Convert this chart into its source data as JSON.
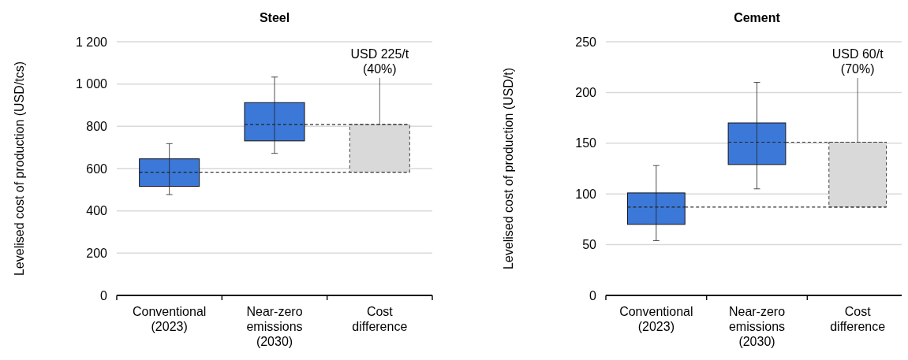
{
  "chart_data": [
    {
      "type": "box",
      "title": "Steel",
      "ylabel": "Levelised cost of production (USD/tcs)",
      "categories": [
        "Conventional\n(2023)",
        "Near-zero\nemissions\n(2030)",
        "Cost\ndifference"
      ],
      "ylim": [
        0,
        1200
      ],
      "yticks": [
        0,
        200,
        400,
        600,
        800,
        {
          "value": 1000,
          "label": "1 000"
        },
        {
          "value": 1200,
          "label": "1 200"
        }
      ],
      "grid": "y",
      "series": [
        {
          "color": "#3c78d8",
          "boxes": [
            {
              "low": 477,
              "q1": 516,
              "median": 583,
              "q3": 646,
              "high": 718
            },
            {
              "low": 672,
              "q1": 731,
              "median": 808,
              "q3": 912,
              "high": 1033
            },
            null
          ]
        },
        {
          "type": "bar",
          "color": "#d9d9d9",
          "base": [
            null,
            null,
            583
          ],
          "values": [
            null,
            null,
            225
          ]
        }
      ],
      "ref_lines": [
        {
          "axis": "y",
          "value": 583,
          "line_style": "dashed",
          "color": "#333333"
        },
        {
          "axis": "y",
          "value": 808,
          "line_style": "dashed",
          "color": "#333333"
        }
      ],
      "annotations": [
        {
          "text": "USD 225/t\n(40%)",
          "x": "Cost\ndifference",
          "y": 808
        }
      ]
    },
    {
      "type": "box",
      "title": "Cement",
      "ylabel": "Levelised cost of production (USD/t)",
      "categories": [
        "Conventional\n(2023)",
        "Near-zero\nemissions\n(2030)",
        "Cost\ndifference"
      ],
      "ylim": [
        0,
        250
      ],
      "yticks": [
        0,
        50,
        100,
        150,
        200,
        250
      ],
      "grid": "y",
      "series": [
        {
          "color": "#3c78d8",
          "boxes": [
            {
              "low": 54,
              "q1": 70,
              "median": 87,
              "q3": 101,
              "high": 128
            },
            {
              "low": 105,
              "q1": 129,
              "median": 151,
              "q3": 170,
              "high": 210
            },
            null
          ]
        },
        {
          "type": "bar",
          "color": "#d9d9d9",
          "base": [
            null,
            null,
            87
          ],
          "values": [
            null,
            null,
            64
          ]
        }
      ],
      "ref_lines": [
        {
          "axis": "y",
          "value": 87,
          "line_style": "dashed",
          "color": "#333333"
        },
        {
          "axis": "y",
          "value": 151,
          "line_style": "dashed",
          "color": "#333333"
        }
      ],
      "annotations": [
        {
          "text": "USD 60/t\n(70%)",
          "x": "Cost\ndifference",
          "y": 151
        }
      ]
    }
  ]
}
